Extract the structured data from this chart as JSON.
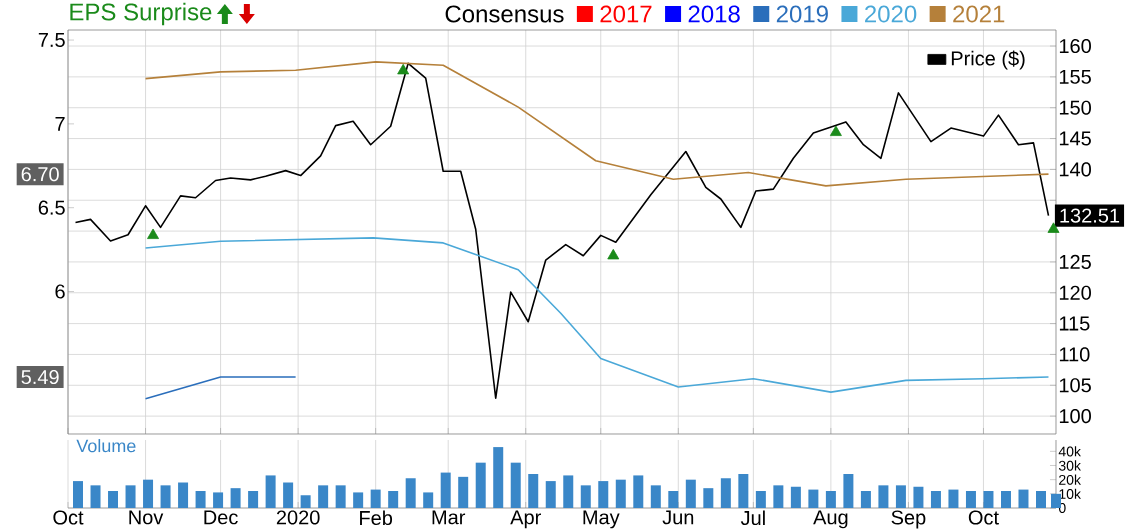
{
  "chart_data": [
    {
      "type": "line",
      "legend_title": "Consensus",
      "legend": "top right",
      "grid": true,
      "tick_labels": "y",
      "xlim": [
        "2019-10-01",
        "2020-10-30"
      ],
      "xticks": [
        {
          "value": "2019-10-01",
          "label": null
        },
        {
          "value": "2019-11-01",
          "label": null
        },
        {
          "value": "2019-12-01",
          "label": null
        },
        {
          "value": "2020-01-01",
          "label": null
        },
        {
          "value": "2020-02-01",
          "label": null
        },
        {
          "value": "2020-03-01",
          "label": null
        },
        {
          "value": "2020-04-01",
          "label": null
        },
        {
          "value": "2020-05-01",
          "label": null
        },
        {
          "value": "2020-06-01",
          "label": null
        },
        {
          "value": "2020-07-01",
          "label": null
        },
        {
          "value": "2020-08-01",
          "label": null
        },
        {
          "value": "2020-09-01",
          "label": null
        },
        {
          "value": "2020-10-01",
          "label": null
        }
      ],
      "ylim": [
        5.15,
        7.56
      ],
      "yticks": [
        6,
        6.5,
        7,
        7.5
      ],
      "y2lim": [
        97.1,
        162.6
      ],
      "y2ticks": [
        100,
        105,
        110,
        115,
        120,
        125,
        {
          "value": 130,
          "label": null
        },
        {
          "value": 135,
          "label": null
        },
        140,
        145,
        150,
        155,
        160
      ],
      "annotations": [
        "6.70",
        "5.49"
      ],
      "series": [
        {
          "name": "Price ($)",
          "type": "line",
          "axis": "y2",
          "color": "#000000",
          "x": [
            "2019-10-04",
            "2019-10-10",
            "2019-10-18",
            "2019-10-25",
            "2019-11-01",
            "2019-11-07",
            "2019-11-15",
            "2019-11-21",
            "2019-11-29",
            "2019-12-05",
            "2019-12-13",
            "2019-12-19",
            "2019-12-27",
            "2020-01-02",
            "2020-01-10",
            "2020-01-16",
            "2020-01-23",
            "2020-01-30",
            "2020-02-07",
            "2020-02-14",
            "2020-02-21",
            "2020-02-28",
            "2020-03-06",
            "2020-03-12",
            "2020-03-20",
            "2020-03-26",
            "2020-04-02",
            "2020-04-09",
            "2020-04-17",
            "2020-04-24",
            "2020-05-01",
            "2020-05-07",
            "2020-05-21",
            "2020-06-04",
            "2020-06-12",
            "2020-06-18",
            "2020-06-26",
            "2020-07-02",
            "2020-07-09",
            "2020-07-17",
            "2020-07-25",
            "2020-08-07",
            "2020-08-14",
            "2020-08-21",
            "2020-08-28",
            "2020-09-10",
            "2020-09-18",
            "2020-10-01",
            "2020-10-07",
            "2020-10-15",
            "2020-10-21",
            "2020-10-27"
          ],
          "values": [
            131.4,
            131.9,
            128.4,
            129.4,
            134.1,
            130.6,
            135.7,
            135.4,
            138.2,
            138.6,
            138.3,
            138.9,
            139.8,
            139.0,
            142.2,
            147.1,
            147.8,
            144.0,
            147.0,
            157.2,
            154.8,
            139.7,
            139.7,
            130.3,
            102.9,
            120.1,
            115.3,
            125.3,
            127.8,
            126.0,
            129.3,
            128.2,
            135.9,
            142.9,
            137.1,
            135.2,
            130.6,
            136.5,
            136.8,
            141.8,
            145.9,
            147.7,
            144.0,
            141.8,
            152.4,
            144.5,
            146.7,
            145.4,
            148.8,
            144.0,
            144.3,
            132.51
          ],
          "value_labels": [
            null,
            null,
            null,
            null,
            null,
            null,
            null,
            null,
            null,
            null,
            null,
            null,
            null,
            null,
            null,
            null,
            null,
            null,
            null,
            null,
            null,
            null,
            null,
            null,
            null,
            null,
            null,
            null,
            null,
            null,
            null,
            null,
            null,
            null,
            null,
            null,
            null,
            null,
            null,
            null,
            null,
            null,
            null,
            null,
            null,
            null,
            null,
            null,
            null,
            null,
            null,
            "132.51"
          ]
        },
        {
          "name": "2017",
          "type": "line",
          "color": "#ff0000"
        },
        {
          "name": "2018",
          "type": "line",
          "color": "#0000ff"
        },
        {
          "name": "2019",
          "type": "line",
          "color": "#2a6ebb",
          "x": [
            "2019-11-01",
            "2019-12-01",
            "2019-12-31"
          ],
          "values": [
            5.36,
            5.49,
            5.49
          ]
        },
        {
          "name": "2020",
          "type": "line",
          "color": "#4aa8d8",
          "x": [
            "2019-11-01",
            "2019-12-01",
            "2020-01-31",
            "2020-02-28",
            "2020-03-29",
            "2020-04-15",
            "2020-05-01",
            "2020-06-01",
            "2020-07-01",
            "2020-08-01",
            "2020-08-31",
            "2020-10-01",
            "2020-10-27"
          ],
          "values": [
            6.26,
            6.3,
            6.32,
            6.29,
            6.13,
            5.87,
            5.6,
            5.43,
            5.48,
            5.4,
            5.47,
            5.48,
            5.49
          ]
        },
        {
          "name": "2021",
          "type": "line",
          "color": "#b5803a",
          "x": [
            "2019-11-01",
            "2019-12-01",
            "2019-12-31",
            "2020-02-01",
            "2020-02-28",
            "2020-03-29",
            "2020-04-29",
            "2020-05-30",
            "2020-06-29",
            "2020-07-30",
            "2020-08-31",
            "2020-10-27"
          ],
          "values": [
            7.27,
            7.31,
            7.32,
            7.37,
            7.35,
            7.1,
            6.78,
            6.67,
            6.71,
            6.63,
            6.67,
            6.7
          ]
        },
        {
          "name": "EPS Surprise",
          "type": "scatter",
          "axis": "y2",
          "marker": "triangle",
          "color": "#1a8a1a",
          "x": [
            "2019-11-04",
            "2020-02-12",
            "2020-05-06",
            "2020-08-03",
            "2020-10-29"
          ],
          "values": [
            129.3,
            156,
            126,
            146,
            130.3
          ]
        }
      ]
    },
    {
      "type": "bar",
      "y2label": "Volume",
      "grid": "x",
      "xlim": [
        "2019-10-01",
        "2020-10-30"
      ],
      "xticks": [
        {
          "value": "2019-10-01",
          "label": "Oct"
        },
        {
          "value": "2019-11-01",
          "label": "Nov"
        },
        {
          "value": "2019-12-01",
          "label": "Dec"
        },
        {
          "value": "2020-01-01",
          "label": "2020"
        },
        {
          "value": "2020-02-01",
          "label": "Feb"
        },
        {
          "value": "2020-03-01",
          "label": "Mar"
        },
        {
          "value": "2020-04-01",
          "label": "Apr"
        },
        {
          "value": "2020-05-01",
          "label": "May"
        },
        {
          "value": "2020-06-01",
          "label": "Jun"
        },
        {
          "value": "2020-07-01",
          "label": "Jul"
        },
        {
          "value": "2020-08-01",
          "label": "Aug"
        },
        {
          "value": "2020-09-01",
          "label": "Sep"
        },
        {
          "value": "2020-10-01",
          "label": "Oct"
        }
      ],
      "y2lim": [
        0,
        48000
      ],
      "y2ticks": [
        0,
        {
          "value": 10000,
          "label": "10k"
        },
        {
          "value": 20000,
          "label": "20k"
        },
        {
          "value": 30000,
          "label": "30k"
        },
        {
          "value": 40000,
          "label": "40k"
        }
      ],
      "series": [
        {
          "axis": "y2",
          "color": "#3a87c8",
          "x": [
            "2019-10-05",
            "2019-10-12",
            "2019-10-19",
            "2019-10-26",
            "2019-11-02",
            "2019-11-09",
            "2019-11-16",
            "2019-11-23",
            "2019-11-30",
            "2019-12-07",
            "2019-12-14",
            "2019-12-21",
            "2019-12-28",
            "2020-01-04",
            "2020-01-11",
            "2020-01-18",
            "2020-01-25",
            "2020-02-01",
            "2020-02-08",
            "2020-02-15",
            "2020-02-22",
            "2020-02-29",
            "2020-03-07",
            "2020-03-14",
            "2020-03-21",
            "2020-03-28",
            "2020-04-04",
            "2020-04-11",
            "2020-04-18",
            "2020-04-25",
            "2020-05-02",
            "2020-05-09",
            "2020-05-16",
            "2020-05-23",
            "2020-05-30",
            "2020-06-06",
            "2020-06-13",
            "2020-06-20",
            "2020-06-27",
            "2020-07-04",
            "2020-07-11",
            "2020-07-18",
            "2020-07-25",
            "2020-08-01",
            "2020-08-08",
            "2020-08-15",
            "2020-08-22",
            "2020-08-29",
            "2020-09-05",
            "2020-09-12",
            "2020-09-19",
            "2020-09-26",
            "2020-10-03",
            "2020-10-10",
            "2020-10-17",
            "2020-10-24",
            "2020-10-30"
          ],
          "values": [
            19000,
            16000,
            12000,
            16000,
            20000,
            16000,
            18000,
            12000,
            11000,
            14000,
            12000,
            23000,
            18000,
            9000,
            16000,
            16000,
            11000,
            13000,
            12000,
            21000,
            11000,
            25000,
            22000,
            32000,
            43000,
            32000,
            24000,
            19000,
            23000,
            16000,
            19000,
            20000,
            23000,
            16000,
            12000,
            20000,
            14000,
            21000,
            24000,
            12000,
            16000,
            15000,
            13000,
            12000,
            24000,
            12000,
            16000,
            16000,
            15000,
            12000,
            13000,
            12000,
            12000,
            12000,
            13000,
            12000,
            10000
          ]
        }
      ]
    }
  ]
}
